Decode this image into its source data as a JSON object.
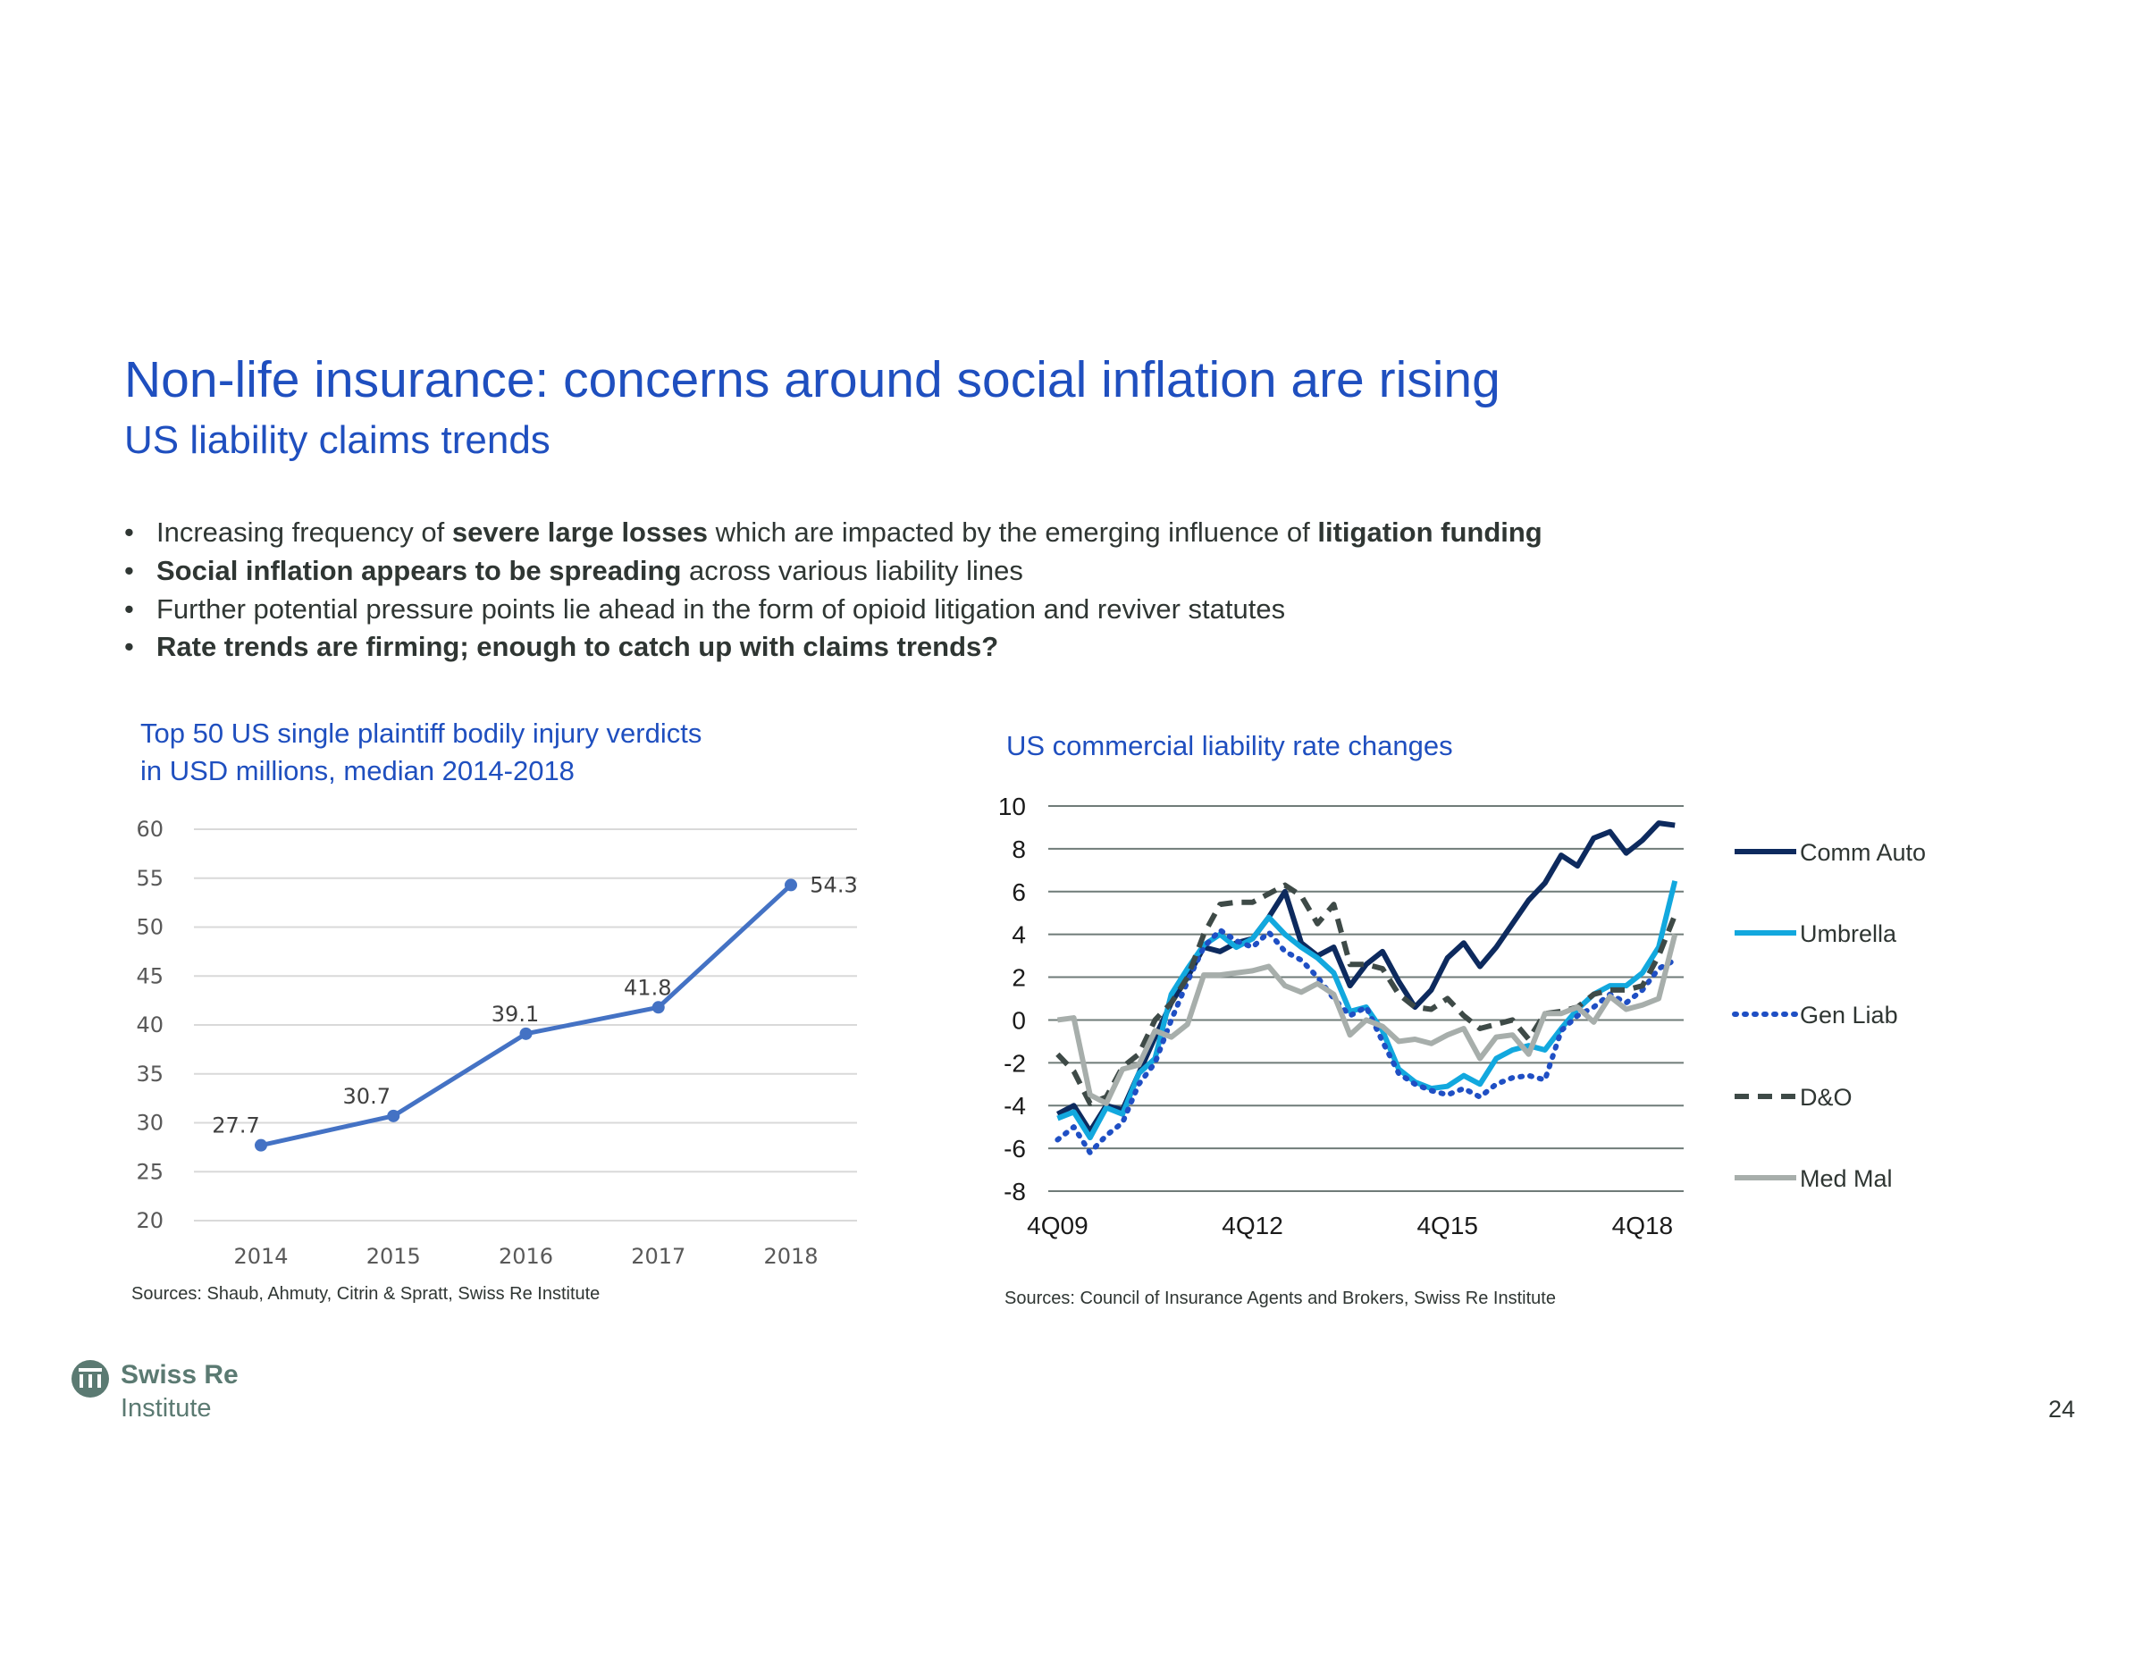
{
  "header": {
    "title": "Non-life insurance: concerns around social inflation are rising",
    "subtitle": "US liability claims trends"
  },
  "bullets": [
    [
      {
        "text": "Increasing frequency of ",
        "bold": false
      },
      {
        "text": "severe large losses",
        "bold": true
      },
      {
        "text": " which are impacted by the emerging influence of ",
        "bold": false
      },
      {
        "text": "litigation funding",
        "bold": true
      }
    ],
    [
      {
        "text": "Social inflation appears to be spreading",
        "bold": true
      },
      {
        "text": " across various liability lines",
        "bold": false
      }
    ],
    [
      {
        "text": "Further potential pressure points lie ahead in the form of opioid litigation and reviver statutes",
        "bold": false
      }
    ],
    [
      {
        "text": "Rate trends are firming; enough to catch up with claims trends?",
        "bold": true
      }
    ]
  ],
  "bullet_symbol": "•",
  "chart_data": [
    {
      "type": "line",
      "title": "Top 50 US single plaintiff bodily injury verdicts\nin USD millions, median 2014-2018",
      "title_lines": [
        "Top 50 US single plaintiff bodily injury verdicts",
        "in USD millions, median 2014-2018"
      ],
      "categories": [
        "2014",
        "2015",
        "2016",
        "2017",
        "2018"
      ],
      "values": [
        27.7,
        30.7,
        39.1,
        41.8,
        54.3
      ],
      "data_labels": [
        "27.7",
        "30.7",
        "39.1",
        "41.8",
        "54.3"
      ],
      "ylim": [
        20,
        60
      ],
      "yticks": [
        20,
        25,
        30,
        35,
        40,
        45,
        50,
        55,
        60
      ],
      "grid": true,
      "color": "#4472c4",
      "source": "Sources: Shaub, Ahmuty, Citrin & Spratt, Swiss Re Institute"
    },
    {
      "type": "line",
      "title": "US commercial liability rate changes",
      "x_ticks": [
        "4Q09",
        "4Q12",
        "4Q15",
        "4Q18"
      ],
      "ylim": [
        -8,
        10
      ],
      "yticks": [
        -8,
        -6,
        -4,
        -2,
        0,
        2,
        4,
        6,
        8,
        10
      ],
      "grid": true,
      "legend_position": "right",
      "x_start": "4Q09",
      "x_end": "2Q19",
      "series": [
        {
          "name": "Comm Auto",
          "color": "#0d2a5e",
          "style": "solid",
          "values": [
            -4.4,
            -4.0,
            -5.2,
            -4.0,
            -4.2,
            -2.5,
            -0.8,
            0.8,
            2.0,
            3.4,
            3.2,
            3.6,
            3.8,
            4.8,
            6.0,
            3.6,
            3.0,
            3.4,
            1.6,
            2.6,
            3.2,
            1.8,
            0.6,
            1.4,
            2.9,
            3.6,
            2.5,
            3.4,
            4.5,
            5.6,
            6.4,
            7.7,
            7.2,
            8.5,
            8.8,
            7.8,
            8.4,
            9.2,
            9.1
          ]
        },
        {
          "name": "Umbrella",
          "color": "#12a8de",
          "style": "solid",
          "values": [
            -4.6,
            -4.3,
            -5.5,
            -4.1,
            -4.4,
            -2.5,
            -1.8,
            1.2,
            2.4,
            3.5,
            4.0,
            3.4,
            3.8,
            4.8,
            4.0,
            3.4,
            2.9,
            2.2,
            0.4,
            0.6,
            -0.5,
            -2.3,
            -2.9,
            -3.2,
            -3.1,
            -2.6,
            -3.0,
            -1.8,
            -1.4,
            -1.2,
            -1.4,
            -0.4,
            0.5,
            1.2,
            1.6,
            1.6,
            2.2,
            3.4,
            6.5
          ]
        },
        {
          "name": "Gen Liab",
          "color": "#1f4fc4",
          "style": "dotted",
          "values": [
            -5.6,
            -5.0,
            -6.2,
            -5.4,
            -4.8,
            -3.0,
            -2.0,
            0.0,
            1.8,
            3.4,
            4.2,
            3.7,
            3.4,
            4.1,
            3.2,
            2.8,
            2.0,
            1.0,
            0.2,
            0.6,
            -1.0,
            -2.5,
            -3.0,
            -3.3,
            -3.5,
            -3.2,
            -3.6,
            -3.0,
            -2.7,
            -2.6,
            -2.8,
            -0.5,
            0.2,
            0.6,
            1.2,
            0.8,
            1.4,
            2.4,
            2.8
          ]
        },
        {
          "name": "D&O",
          "color": "#3e4a47",
          "style": "dashed",
          "values": [
            -1.6,
            -2.4,
            -3.9,
            -3.6,
            -2.2,
            -1.6,
            0.0,
            0.8,
            2.0,
            4.0,
            5.4,
            5.5,
            5.5,
            5.9,
            6.3,
            5.8,
            4.5,
            5.4,
            2.6,
            2.6,
            2.4,
            1.2,
            0.6,
            0.5,
            1.0,
            0.2,
            -0.4,
            -0.2,
            0.0,
            -0.9,
            0.3,
            0.4,
            0.6,
            1.2,
            1.4,
            1.4,
            1.6,
            3.0,
            4.9
          ]
        },
        {
          "name": "Med Mal",
          "color": "#a7aeab",
          "style": "solid",
          "values": [
            0.0,
            0.1,
            -3.5,
            -3.9,
            -2.3,
            -2.1,
            -0.5,
            -0.8,
            -0.2,
            2.1,
            2.1,
            2.2,
            2.3,
            2.5,
            1.6,
            1.3,
            1.7,
            1.2,
            -0.7,
            0.0,
            -0.3,
            -1.0,
            -0.9,
            -1.1,
            -0.7,
            -0.4,
            -1.8,
            -0.8,
            -0.7,
            -1.6,
            0.3,
            0.3,
            0.6,
            -0.1,
            1.1,
            0.5,
            0.7,
            1.0,
            4.0
          ]
        }
      ],
      "source": "Sources: Council of Insurance Agents and Brokers, Swiss Re Institute"
    }
  ],
  "footer": {
    "logo_text": "Swiss Re",
    "logo_subtext": "Institute",
    "page_number": "24"
  },
  "colors": {
    "accent": "#1f4fbf",
    "text": "#2f3633",
    "logo": "#5b7a72",
    "grid": "#d9d9d9",
    "grid_right": "#6f7b78"
  }
}
